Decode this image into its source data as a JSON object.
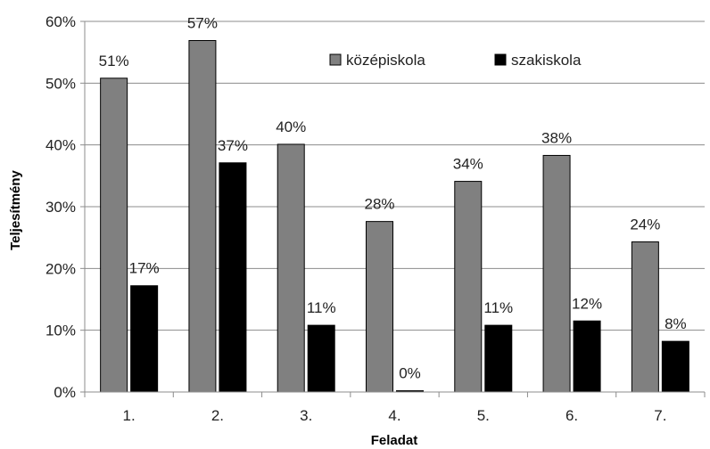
{
  "chart_data": {
    "type": "bar",
    "xlabel": "Feladat",
    "ylabel": "Teljesítmény",
    "ylim": [
      0,
      60
    ],
    "y_ticks": [
      "0%",
      "10%",
      "20%",
      "30%",
      "40%",
      "50%",
      "60%"
    ],
    "grid": true,
    "legend_position": "top-right",
    "categories": [
      "1.",
      "2.",
      "3.",
      "4.",
      "5.",
      "6.",
      "7."
    ],
    "series": [
      {
        "name": "középiskola",
        "color": "#808080",
        "values": [
          50.8,
          56.9,
          40.1,
          27.6,
          34.1,
          38.3,
          24.3
        ],
        "labels": [
          "51%",
          "57%",
          "40%",
          "28%",
          "34%",
          "38%",
          "24%"
        ]
      },
      {
        "name": "szakiskola",
        "color": "#000000",
        "values": [
          17.2,
          37.1,
          10.8,
          0.2,
          10.8,
          11.5,
          8.2
        ],
        "labels": [
          "17%",
          "37%",
          "11%",
          "0%",
          "11%",
          "12%",
          "8%"
        ]
      }
    ]
  }
}
